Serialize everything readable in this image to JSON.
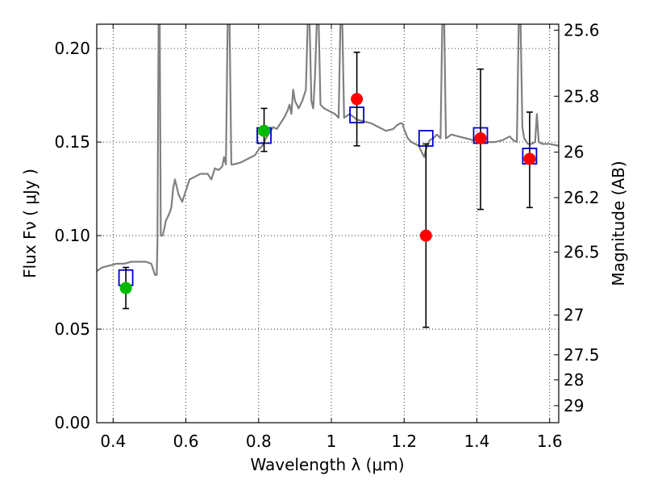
{
  "chart_data": {
    "type": "scatter",
    "xlabel": "Wavelength  λ (μm)",
    "ylabel": "Flux  Fν  ( μJy )",
    "ylabel_right": "Magnitude (AB)",
    "xlim": [
      0.355,
      1.625
    ],
    "ylim": [
      0.0,
      0.213
    ],
    "x_ticks": [
      0.4,
      0.6,
      0.8,
      1.0,
      1.2,
      1.4,
      1.6
    ],
    "x_tick_labels": [
      "0.4",
      "0.6",
      "0.8",
      "1",
      "1.2",
      "1.4",
      "1.6"
    ],
    "y_ticks": [
      0.0,
      0.05,
      0.1,
      0.15,
      0.2
    ],
    "y_tick_labels": [
      "0.00",
      "0.05",
      "0.10",
      "0.15",
      "0.20"
    ],
    "right_ticks": [
      {
        "label": "25.6",
        "flux": 0.2098
      },
      {
        "label": "25.8",
        "flux": 0.1745
      },
      {
        "label": "26",
        "flux": 0.1446
      },
      {
        "label": "26.2",
        "flux": 0.1203
      },
      {
        "label": "26.5",
        "flux": 0.0912
      },
      {
        "label": "27",
        "flux": 0.0575
      },
      {
        "label": "27.5",
        "flux": 0.0363
      },
      {
        "label": "28",
        "flux": 0.0229
      },
      {
        "label": "29",
        "flux": 0.0091
      }
    ],
    "grid": true,
    "colors": {
      "spectrum": "#808080",
      "model_box": "#0000cc",
      "green_point": "#00bb00",
      "red_point": "#ff0000",
      "errorbar": "#000000"
    },
    "spectrum": [
      [
        0.355,
        0.081
      ],
      [
        0.37,
        0.083
      ],
      [
        0.39,
        0.084
      ],
      [
        0.41,
        0.085
      ],
      [
        0.43,
        0.085
      ],
      [
        0.45,
        0.086
      ],
      [
        0.47,
        0.086
      ],
      [
        0.49,
        0.086
      ],
      [
        0.505,
        0.085
      ],
      [
        0.515,
        0.079
      ],
      [
        0.52,
        0.079
      ],
      [
        0.522,
        0.097
      ],
      [
        0.525,
        0.215
      ],
      [
        0.528,
        0.215
      ],
      [
        0.531,
        0.1
      ],
      [
        0.536,
        0.1
      ],
      [
        0.541,
        0.104
      ],
      [
        0.545,
        0.108
      ],
      [
        0.55,
        0.11
      ],
      [
        0.555,
        0.112
      ],
      [
        0.56,
        0.115
      ],
      [
        0.565,
        0.125
      ],
      [
        0.57,
        0.13
      ],
      [
        0.58,
        0.122
      ],
      [
        0.59,
        0.118
      ],
      [
        0.6,
        0.124
      ],
      [
        0.61,
        0.13
      ],
      [
        0.62,
        0.131
      ],
      [
        0.64,
        0.133
      ],
      [
        0.66,
        0.133
      ],
      [
        0.67,
        0.13
      ],
      [
        0.68,
        0.136
      ],
      [
        0.69,
        0.135
      ],
      [
        0.7,
        0.137
      ],
      [
        0.705,
        0.142
      ],
      [
        0.71,
        0.138
      ],
      [
        0.715,
        0.215
      ],
      [
        0.72,
        0.215
      ],
      [
        0.725,
        0.138
      ],
      [
        0.73,
        0.138
      ],
      [
        0.75,
        0.139
      ],
      [
        0.77,
        0.141
      ],
      [
        0.79,
        0.143
      ],
      [
        0.8,
        0.146
      ],
      [
        0.81,
        0.148
      ],
      [
        0.82,
        0.152
      ],
      [
        0.83,
        0.155
      ],
      [
        0.84,
        0.158
      ],
      [
        0.85,
        0.157
      ],
      [
        0.86,
        0.16
      ],
      [
        0.87,
        0.163
      ],
      [
        0.88,
        0.167
      ],
      [
        0.885,
        0.17
      ],
      [
        0.89,
        0.165
      ],
      [
        0.895,
        0.178
      ],
      [
        0.9,
        0.172
      ],
      [
        0.91,
        0.168
      ],
      [
        0.92,
        0.172
      ],
      [
        0.93,
        0.178
      ],
      [
        0.935,
        0.215
      ],
      [
        0.94,
        0.215
      ],
      [
        0.945,
        0.172
      ],
      [
        0.95,
        0.168
      ],
      [
        0.955,
        0.185
      ],
      [
        0.96,
        0.215
      ],
      [
        0.965,
        0.215
      ],
      [
        0.97,
        0.17
      ],
      [
        0.98,
        0.168
      ],
      [
        1.0,
        0.166
      ],
      [
        1.01,
        0.165
      ],
      [
        1.02,
        0.163
      ],
      [
        1.025,
        0.215
      ],
      [
        1.03,
        0.215
      ],
      [
        1.035,
        0.163
      ],
      [
        1.05,
        0.165
      ],
      [
        1.07,
        0.162
      ],
      [
        1.09,
        0.161
      ],
      [
        1.11,
        0.16
      ],
      [
        1.13,
        0.158
      ],
      [
        1.15,
        0.156
      ],
      [
        1.17,
        0.157
      ],
      [
        1.18,
        0.159
      ],
      [
        1.19,
        0.16
      ],
      [
        1.195,
        0.16
      ],
      [
        1.2,
        0.157
      ],
      [
        1.21,
        0.152
      ],
      [
        1.22,
        0.15
      ],
      [
        1.23,
        0.149
      ],
      [
        1.24,
        0.148
      ],
      [
        1.25,
        0.144
      ],
      [
        1.255,
        0.142
      ],
      [
        1.26,
        0.146
      ],
      [
        1.27,
        0.151
      ],
      [
        1.28,
        0.152
      ],
      [
        1.29,
        0.154
      ],
      [
        1.3,
        0.152
      ],
      [
        1.305,
        0.215
      ],
      [
        1.31,
        0.215
      ],
      [
        1.315,
        0.152
      ],
      [
        1.33,
        0.154
      ],
      [
        1.35,
        0.153
      ],
      [
        1.37,
        0.152
      ],
      [
        1.39,
        0.151
      ],
      [
        1.41,
        0.15
      ],
      [
        1.43,
        0.15
      ],
      [
        1.45,
        0.15
      ],
      [
        1.47,
        0.151
      ],
      [
        1.49,
        0.153
      ],
      [
        1.5,
        0.151
      ],
      [
        1.51,
        0.15
      ],
      [
        1.515,
        0.215
      ],
      [
        1.52,
        0.215
      ],
      [
        1.525,
        0.158
      ],
      [
        1.53,
        0.152
      ],
      [
        1.54,
        0.149
      ],
      [
        1.55,
        0.149
      ],
      [
        1.56,
        0.15
      ],
      [
        1.565,
        0.165
      ],
      [
        1.57,
        0.15
      ],
      [
        1.58,
        0.149
      ],
      [
        1.6,
        0.149
      ],
      [
        1.625,
        0.148
      ]
    ],
    "model_boxes": [
      {
        "x": 0.435,
        "y": 0.0775
      },
      {
        "x": 0.815,
        "y": 0.1535
      },
      {
        "x": 1.07,
        "y": 0.1645
      },
      {
        "x": 1.26,
        "y": 0.152
      },
      {
        "x": 1.41,
        "y": 0.1535
      },
      {
        "x": 1.545,
        "y": 0.1425
      }
    ],
    "points": [
      {
        "x": 0.435,
        "y": 0.072,
        "err_low": 0.061,
        "err_high": 0.083,
        "color": "green"
      },
      {
        "x": 0.815,
        "y": 0.156,
        "err_low": 0.145,
        "err_high": 0.168,
        "color": "green"
      },
      {
        "x": 1.07,
        "y": 0.173,
        "err_low": 0.148,
        "err_high": 0.198,
        "color": "red"
      },
      {
        "x": 1.26,
        "y": 0.1,
        "err_low": 0.051,
        "err_high": 0.149,
        "color": "red"
      },
      {
        "x": 1.41,
        "y": 0.152,
        "err_low": 0.114,
        "err_high": 0.189,
        "color": "red"
      },
      {
        "x": 1.545,
        "y": 0.141,
        "err_low": 0.115,
        "err_high": 0.166,
        "color": "red"
      }
    ]
  }
}
